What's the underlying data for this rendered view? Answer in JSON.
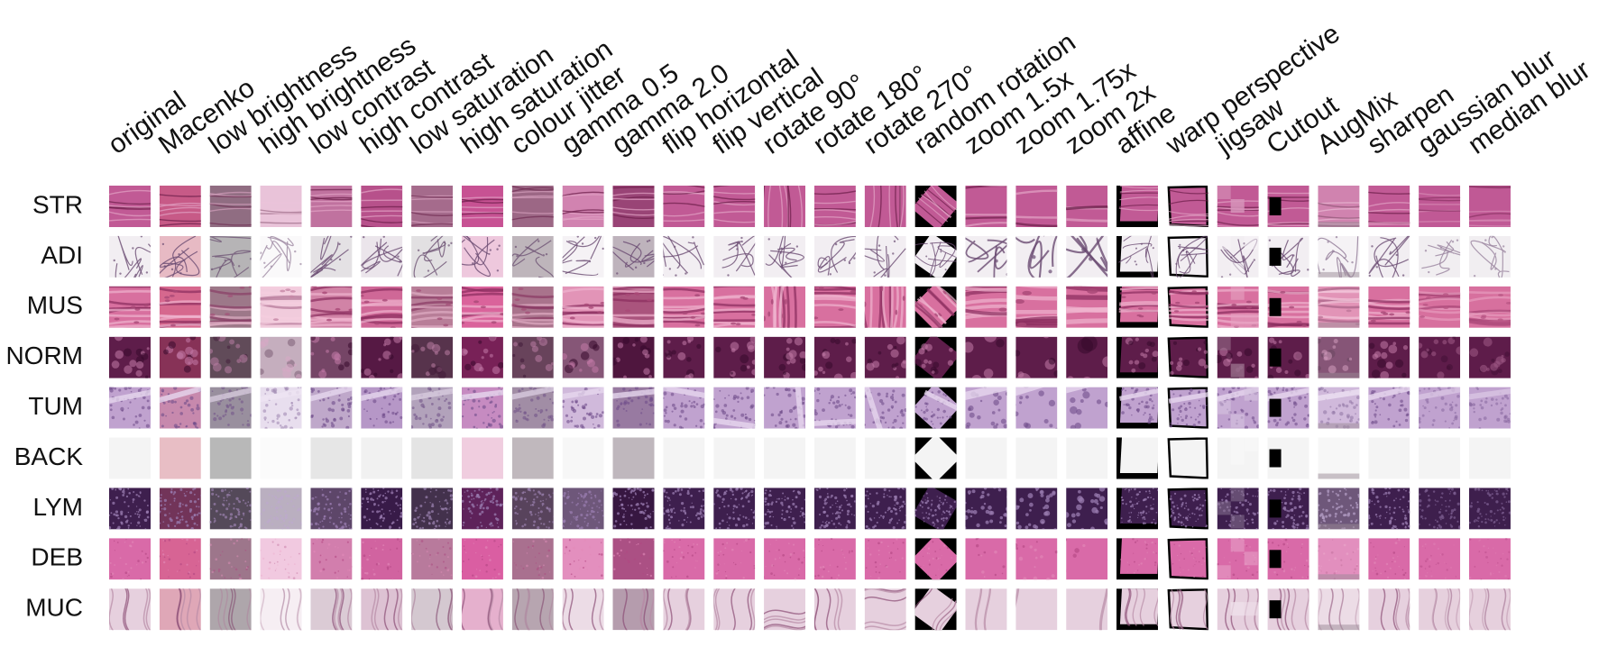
{
  "columns": [
    "original",
    "Macenko",
    "low brightness",
    "high brightness",
    "low contrast",
    "high contrast",
    "low saturation",
    "high saturation",
    "colour jitter",
    "gamma 0.5",
    "gamma 2.0",
    "flip horizontal",
    "flip vertical",
    "rotate 90°",
    "rotate 180°",
    "rotate 270°",
    "random rotation",
    "zoom 1.5x",
    "zoom 1.75x",
    "zoom 2x",
    "affine",
    "warp perspective",
    "jigsaw",
    "Cutout",
    "AugMix",
    "sharpen",
    "gaussian blur",
    "median blur"
  ],
  "rows": [
    {
      "label": "STR",
      "base": "#c15a95",
      "light": "#e3a4c6",
      "dark": "#8e2f63",
      "line": "#6b1d48",
      "pattern": "fiber"
    },
    {
      "label": "ADI",
      "base": "#f2eef2",
      "light": "#fbfafb",
      "dark": "#cfc2cf",
      "line": "#6a4b72",
      "pattern": "cells"
    },
    {
      "label": "MUS",
      "base": "#d8709f",
      "light": "#f0b3cf",
      "dark": "#a94877",
      "line": "#8a2c5e",
      "pattern": "streaks"
    },
    {
      "label": "NORM",
      "base": "#5e1d4a",
      "light": "#8f4a7b",
      "dark": "#36092b",
      "line": "#c27aa8",
      "pattern": "blobs"
    },
    {
      "label": "TUM",
      "base": "#c0a2cf",
      "light": "#e6d7ee",
      "dark": "#8e6ba8",
      "line": "#6f4c8a",
      "pattern": "dense"
    },
    {
      "label": "BACK",
      "base": "#f4f4f4",
      "light": "#ffffff",
      "dark": "#e6e6e6",
      "line": "#c8c8c8",
      "pattern": "flat"
    },
    {
      "label": "LYM",
      "base": "#3e1f4e",
      "light": "#6b4a7f",
      "dark": "#220d31",
      "line": "#9a7cb0",
      "pattern": "dots"
    },
    {
      "label": "DEB",
      "base": "#d96aa8",
      "light": "#f0a9cf",
      "dark": "#b24682",
      "line": "#e28ab9",
      "pattern": "speckle"
    },
    {
      "label": "MUC",
      "base": "#e6d0de",
      "light": "#f6ebf2",
      "dark": "#b78aa5",
      "line": "#8c4e76",
      "pattern": "wavy"
    }
  ]
}
